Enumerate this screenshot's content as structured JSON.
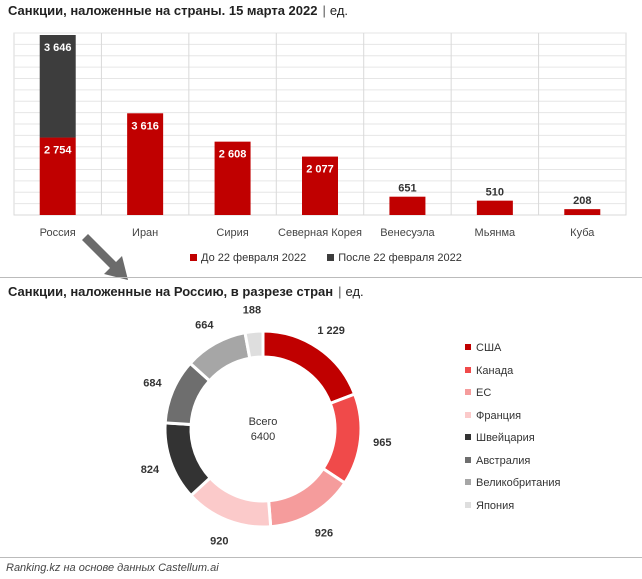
{
  "title1": {
    "main": "Санкции, наложенные на страны. 15 марта 2022",
    "unit": "ед."
  },
  "title2": {
    "main": "Санкции, наложенные на Россию, в разрезе стран",
    "unit": "ед."
  },
  "colors": {
    "before": "#c00000",
    "after": "#3d3d3d"
  },
  "chart_data": [
    {
      "type": "bar",
      "categories": [
        "Россия",
        "Иран",
        "Сирия",
        "Северная Корея",
        "Венесуэла",
        "Мьянма",
        "Куба"
      ],
      "series": [
        {
          "name": "До 22 февраля 2022",
          "values": [
            2754,
            3616,
            2608,
            2077,
            651,
            510,
            208
          ]
        },
        {
          "name": "После 22 февраля 2022",
          "values": [
            3646,
            null,
            null,
            null,
            null,
            null,
            null
          ]
        }
      ],
      "stacked": true,
      "ylim": [
        0,
        6400
      ],
      "grid": true,
      "legend": "bottom"
    },
    {
      "type": "pie",
      "donut": true,
      "center_label": "Всего",
      "center_value": "6400",
      "labels": [
        "США",
        "Канада",
        "ЕС",
        "Франция",
        "Швейцария",
        "Австралия",
        "Великобритания",
        "Япония"
      ],
      "values": [
        1229,
        965,
        926,
        920,
        824,
        684,
        664,
        188
      ],
      "display_values": [
        "1 229",
        "965",
        "926",
        "920",
        "824",
        "684",
        "664",
        "188"
      ],
      "colors": [
        "#c00000",
        "#f04a4a",
        "#f59c9c",
        "#fbcaca",
        "#333333",
        "#6e6e6e",
        "#a6a6a6",
        "#dedede"
      ],
      "legend": "right"
    }
  ],
  "footer": "Ranking.kz на основе данных Castellum.ai"
}
